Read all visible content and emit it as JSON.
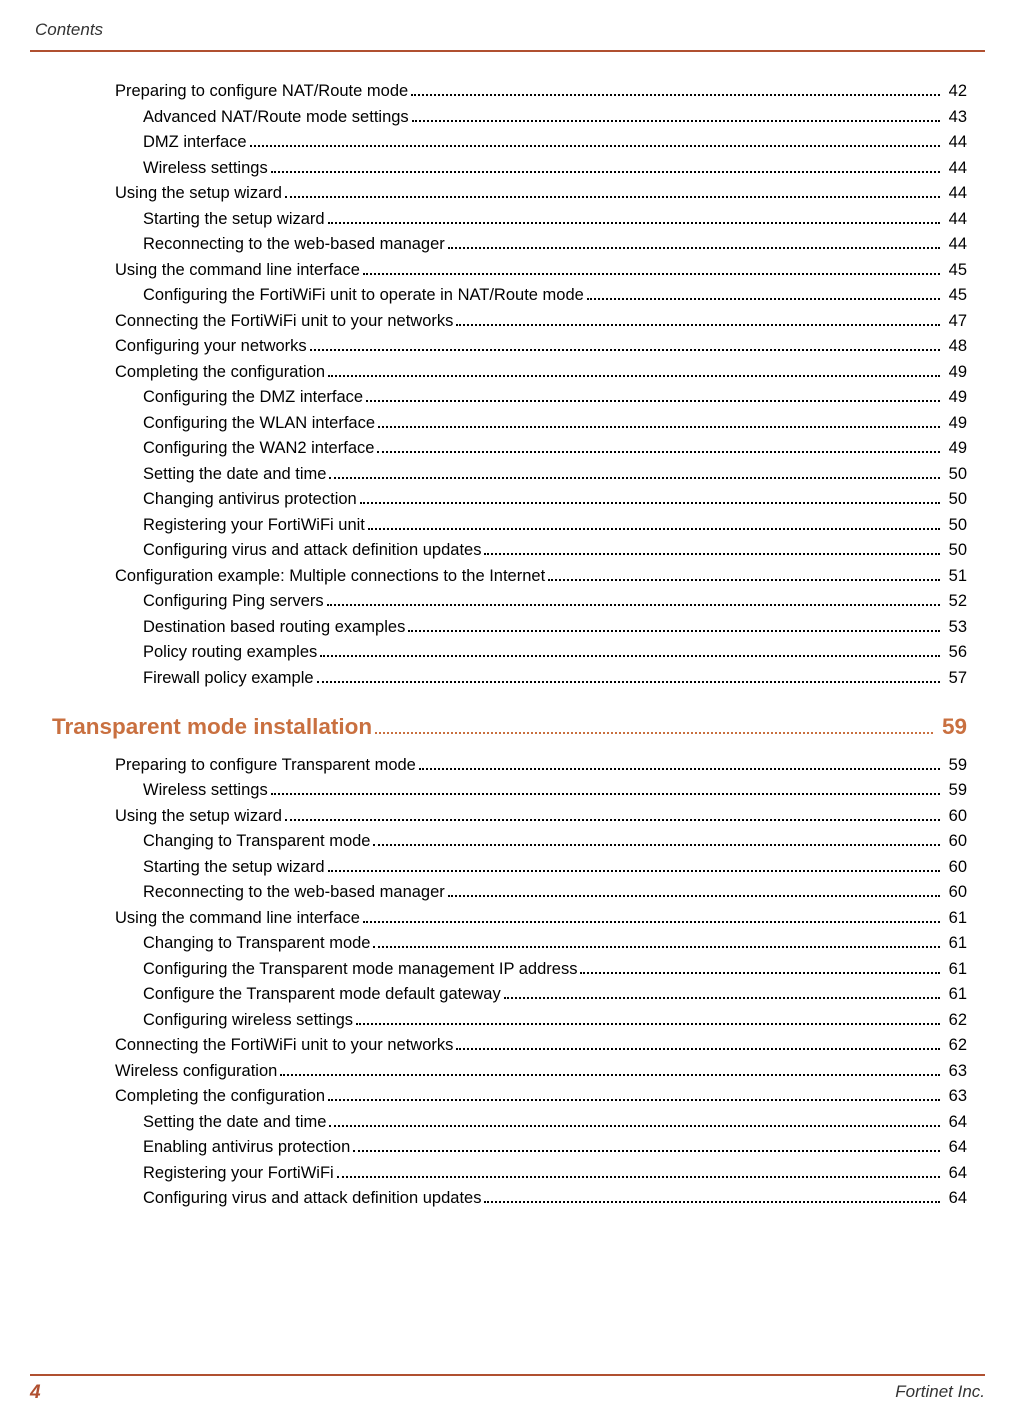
{
  "header_label": "Contents",
  "footer_page": "4",
  "footer_company": "Fortinet Inc.",
  "items": [
    {
      "t": "Preparing to configure NAT/Route mode",
      "p": "42",
      "ind": 1
    },
    {
      "t": "Advanced NAT/Route mode settings",
      "p": "43",
      "ind": 2
    },
    {
      "t": "DMZ interface",
      "p": "44",
      "ind": 2
    },
    {
      "t": "Wireless settings",
      "p": "44",
      "ind": 2
    },
    {
      "t": "Using the setup wizard",
      "p": "44",
      "ind": 1
    },
    {
      "t": "Starting the setup wizard",
      "p": "44",
      "ind": 2
    },
    {
      "t": "Reconnecting to the web-based manager",
      "p": "44",
      "ind": 2
    },
    {
      "t": "Using the command line interface",
      "p": "45",
      "ind": 1
    },
    {
      "t": "Configuring the FortiWiFi unit to operate in NAT/Route mode",
      "p": "45",
      "ind": 2
    },
    {
      "t": "Connecting the FortiWiFi unit to your networks",
      "p": "47",
      "ind": 1
    },
    {
      "t": "Configuring your networks",
      "p": "48",
      "ind": 1
    },
    {
      "t": "Completing the configuration",
      "p": "49",
      "ind": 1
    },
    {
      "t": "Configuring the DMZ interface",
      "p": "49",
      "ind": 2
    },
    {
      "t": "Configuring the WLAN interface",
      "p": "49",
      "ind": 2
    },
    {
      "t": "Configuring the WAN2 interface",
      "p": "49",
      "ind": 2
    },
    {
      "t": "Setting the date and time",
      "p": "50",
      "ind": 2
    },
    {
      "t": "Changing antivirus protection",
      "p": "50",
      "ind": 2
    },
    {
      "t": "Registering your FortiWiFi unit",
      "p": "50",
      "ind": 2
    },
    {
      "t": "Configuring virus and attack definition updates",
      "p": "50",
      "ind": 2
    },
    {
      "t": "Configuration example: Multiple connections to the Internet",
      "p": "51",
      "ind": 1
    },
    {
      "t": "Configuring Ping servers",
      "p": "52",
      "ind": 2
    },
    {
      "t": "Destination based routing examples",
      "p": "53",
      "ind": 2
    },
    {
      "t": "Policy routing examples",
      "p": "56",
      "ind": 2
    },
    {
      "t": "Firewall policy example",
      "p": "57",
      "ind": 2
    }
  ],
  "heading": {
    "t": "Transparent mode installation",
    "p": "59"
  },
  "items2": [
    {
      "t": "Preparing to configure Transparent mode",
      "p": "59",
      "ind": 1
    },
    {
      "t": "Wireless settings",
      "p": "59",
      "ind": 2
    },
    {
      "t": "Using the setup wizard",
      "p": "60",
      "ind": 1
    },
    {
      "t": "Changing to Transparent mode",
      "p": "60",
      "ind": 2
    },
    {
      "t": "Starting the setup wizard",
      "p": "60",
      "ind": 2
    },
    {
      "t": "Reconnecting to the web-based manager",
      "p": "60",
      "ind": 2
    },
    {
      "t": "Using the command line interface",
      "p": "61",
      "ind": 1
    },
    {
      "t": "Changing to Transparent mode",
      "p": "61",
      "ind": 2
    },
    {
      "t": "Configuring the Transparent mode management IP address",
      "p": "61",
      "ind": 2
    },
    {
      "t": "Configure the Transparent mode default gateway",
      "p": "61",
      "ind": 2
    },
    {
      "t": "Configuring wireless settings",
      "p": "62",
      "ind": 2
    },
    {
      "t": "Connecting the FortiWiFi unit to your networks",
      "p": "62",
      "ind": 1
    },
    {
      "t": "Wireless configuration",
      "p": "63",
      "ind": 1
    },
    {
      "t": "Completing the configuration",
      "p": "63",
      "ind": 1
    },
    {
      "t": "Setting the date and time",
      "p": "64",
      "ind": 2
    },
    {
      "t": "Enabling antivirus protection",
      "p": "64",
      "ind": 2
    },
    {
      "t": "Registering your FortiWiFi",
      "p": "64",
      "ind": 2
    },
    {
      "t": "Configuring virus and attack definition updates",
      "p": "64",
      "ind": 2
    }
  ]
}
